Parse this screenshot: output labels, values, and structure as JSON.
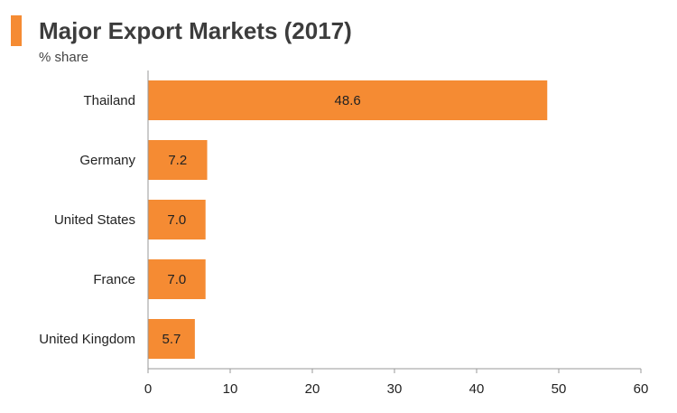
{
  "header": {
    "title": "Major Export Markets (2017)",
    "subtitle": "% share"
  },
  "colors": {
    "bar": "#f58b33",
    "accent": "#f58b33",
    "axis": "#999999"
  },
  "chart_data": {
    "type": "bar",
    "orientation": "horizontal",
    "title": "Major Export Markets (2017)",
    "subtitle": "% share",
    "categories": [
      "Thailand",
      "Germany",
      "United States",
      "France",
      "United Kingdom"
    ],
    "values": [
      48.6,
      7.2,
      7.0,
      7.0,
      5.7
    ],
    "value_labels": [
      "48.6",
      "7.2",
      "7.0",
      "7.0",
      "5.7"
    ],
    "xlim": [
      0,
      60
    ],
    "xticks": [
      0,
      10,
      20,
      30,
      40,
      50,
      60
    ],
    "grid": false,
    "legend": "none"
  }
}
